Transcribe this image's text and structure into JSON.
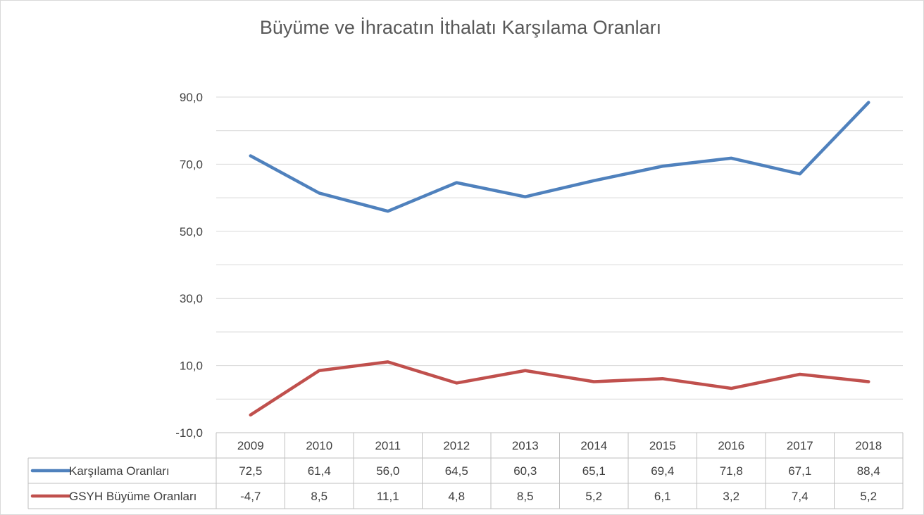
{
  "chart_data": {
    "type": "line",
    "title": "Büyüme ve İhracatın İthalatı Karşılama Oranları",
    "categories": [
      "2009",
      "2010",
      "2011",
      "2012",
      "2013",
      "2014",
      "2015",
      "2016",
      "2017",
      "2018"
    ],
    "series": [
      {
        "name": "Karşılama Oranları",
        "color": "#4f81bd",
        "values": [
          72.5,
          61.4,
          56.0,
          64.5,
          60.3,
          65.1,
          69.4,
          71.8,
          67.1,
          88.4
        ],
        "labels": [
          "72,5",
          "61,4",
          "56,0",
          "64,5",
          "60,3",
          "65,1",
          "69,4",
          "71,8",
          "67,1",
          "88,4"
        ]
      },
      {
        "name": "GSYH Büyüme Oranları",
        "color": "#c0504d",
        "values": [
          -4.7,
          8.5,
          11.1,
          4.8,
          8.5,
          5.2,
          6.1,
          3.2,
          7.4,
          5.2
        ],
        "labels": [
          "-4,7",
          "8,5",
          "11,1",
          "4,8",
          "8,5",
          "5,2",
          "6,1",
          "3,2",
          "7,4",
          "5,2"
        ]
      }
    ],
    "yticks": [
      -10,
      10,
      30,
      50,
      70,
      90
    ],
    "ytick_labels": [
      "-10,0",
      "10,0",
      "30,0",
      "50,0",
      "70,0",
      "90,0"
    ],
    "ylim": [
      -10,
      90
    ],
    "grid": true,
    "legend": "data-table"
  }
}
